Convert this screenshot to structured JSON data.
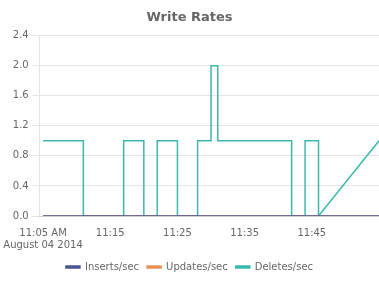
{
  "chart_data": {
    "type": "line",
    "title": "Write Rates",
    "series": [
      {
        "name": "Inserts/sec",
        "color": "#4a5696",
        "x": [
          0,
          50
        ],
        "values": [
          0.0,
          0.0
        ]
      },
      {
        "name": "Updates/sec",
        "color": "#e8925a",
        "x": [
          0,
          50
        ],
        "values": [
          0.0,
          0.0
        ]
      },
      {
        "name": "Deletes/sec",
        "color": "#3ab8b0",
        "x": [
          0,
          6,
          6,
          12,
          12,
          15,
          15,
          17,
          17,
          20,
          20,
          23,
          23,
          25,
          25,
          26,
          26,
          30,
          30,
          37,
          37,
          39,
          39,
          41,
          41,
          50
        ],
        "values": [
          1.0,
          1.0,
          0.0,
          0.0,
          1.0,
          1.0,
          0.0,
          0.0,
          1.0,
          1.0,
          0.0,
          0.0,
          1.0,
          1.0,
          2.0,
          2.0,
          1.0,
          1.0,
          1.0,
          1.0,
          0.0,
          0.0,
          1.0,
          1.0,
          0.0,
          1.0
        ]
      }
    ],
    "xlim": [
      -0.5,
      50
    ],
    "xticks": [
      {
        "value": 0,
        "label": "11:05 AM\nAugust 04 2014"
      },
      {
        "value": 10,
        "label": "11:15"
      },
      {
        "value": 20,
        "label": "11:25"
      },
      {
        "value": 30,
        "label": "11:35"
      },
      {
        "value": 40,
        "label": "11:45"
      }
    ],
    "ylim": [
      0.0,
      2.4
    ],
    "yticks": [
      {
        "value": 0.0,
        "label": "0.0"
      },
      0.4,
      0.8,
      1.2,
      1.6,
      {
        "value": 2.0,
        "label": "2.0"
      },
      2.4
    ],
    "grid": "y",
    "legend": "bottom"
  }
}
